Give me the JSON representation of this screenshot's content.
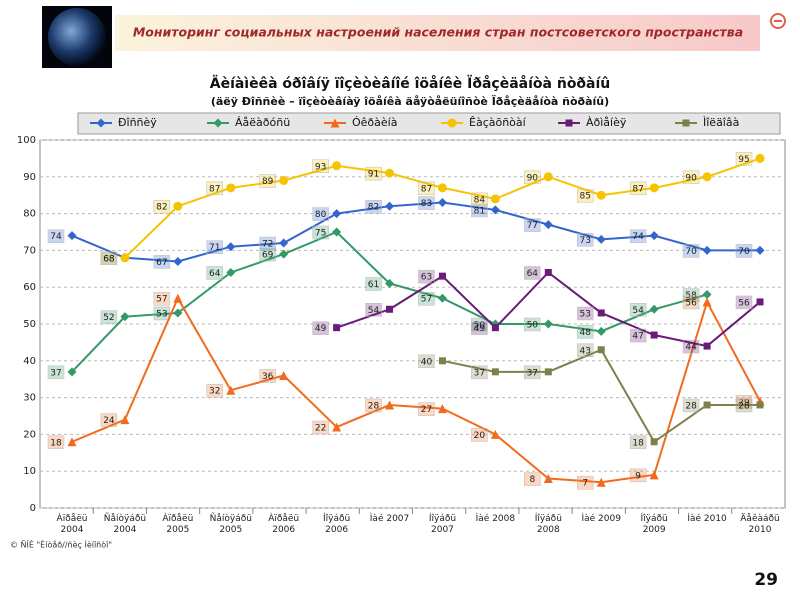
{
  "header": {
    "title": "Мониторинг социальных настроений населения стран постсоветского пространства"
  },
  "chart_data": {
    "type": "line",
    "title": "Äèíàìèêà óðîâíÿ ïîçèòèâíîé îöåíêè Ïðåçèäåíòà ñòðàíû",
    "subtitle": "(äëÿ Ðîññèè – ïîçèòèâíàÿ îöåíêà äåÿòåëüíîñòè Ïðåçèäåíòà ñòðàíû)",
    "categories": [
      "Àïðåëü 2004",
      "Ñåíòÿáðü 2004",
      "Àïðåëü 2005",
      "Ñåíòÿáðü 2005",
      "Àïðåëü 2006",
      "Íîÿáðü 2006",
      "Ìàé 2007",
      "Íîÿáðü 2007",
      "Ìàé 2008",
      "Íîÿáðü 2008",
      "Ìàé 2009",
      "Íîÿáðü 2009",
      "Ìàé 2010",
      "Äåêàáðü 2010"
    ],
    "series": [
      {
        "name": "Ðîññèÿ",
        "color": "#3366cc",
        "marker": "diamond",
        "values": [
          74,
          68,
          67,
          71,
          72,
          80,
          82,
          83,
          81,
          77,
          73,
          74,
          70,
          70
        ]
      },
      {
        "name": "Áåëàðóñü",
        "color": "#339966",
        "marker": "diamond",
        "values": [
          37,
          52,
          53,
          64,
          69,
          75,
          61,
          57,
          50,
          50,
          48,
          54,
          58,
          null
        ]
      },
      {
        "name": "Óêðàèíà",
        "color": "#f26b1d",
        "marker": "triangle",
        "values": [
          18,
          24,
          57,
          32,
          36,
          22,
          28,
          27,
          20,
          8,
          7,
          9,
          56,
          29
        ]
      },
      {
        "name": "Êàçàõñòàí",
        "color": "#f5c400",
        "marker": "circle",
        "values": [
          null,
          68,
          82,
          87,
          89,
          93,
          91,
          87,
          84,
          90,
          85,
          87,
          90,
          95
        ]
      },
      {
        "name": "Àðìåíèÿ",
        "color": "#6a1a78",
        "marker": "square",
        "values": [
          null,
          null,
          null,
          null,
          null,
          49,
          54,
          63,
          49,
          64,
          53,
          47,
          44,
          56
        ]
      },
      {
        "name": "Ìîëäîâà",
        "color": "#7f7f4a",
        "marker": "square",
        "values": [
          null,
          null,
          null,
          null,
          null,
          null,
          null,
          40,
          37,
          37,
          43,
          18,
          28,
          28
        ]
      }
    ],
    "ylim": [
      0,
      100
    ],
    "yticks": [
      0,
      10,
      20,
      30,
      40,
      50,
      60,
      70,
      80,
      90,
      100
    ],
    "grid": true,
    "source": "© ÑÍÈ \"Èíòåð//ñèç Íèïîñòî\""
  },
  "page_number": "29"
}
